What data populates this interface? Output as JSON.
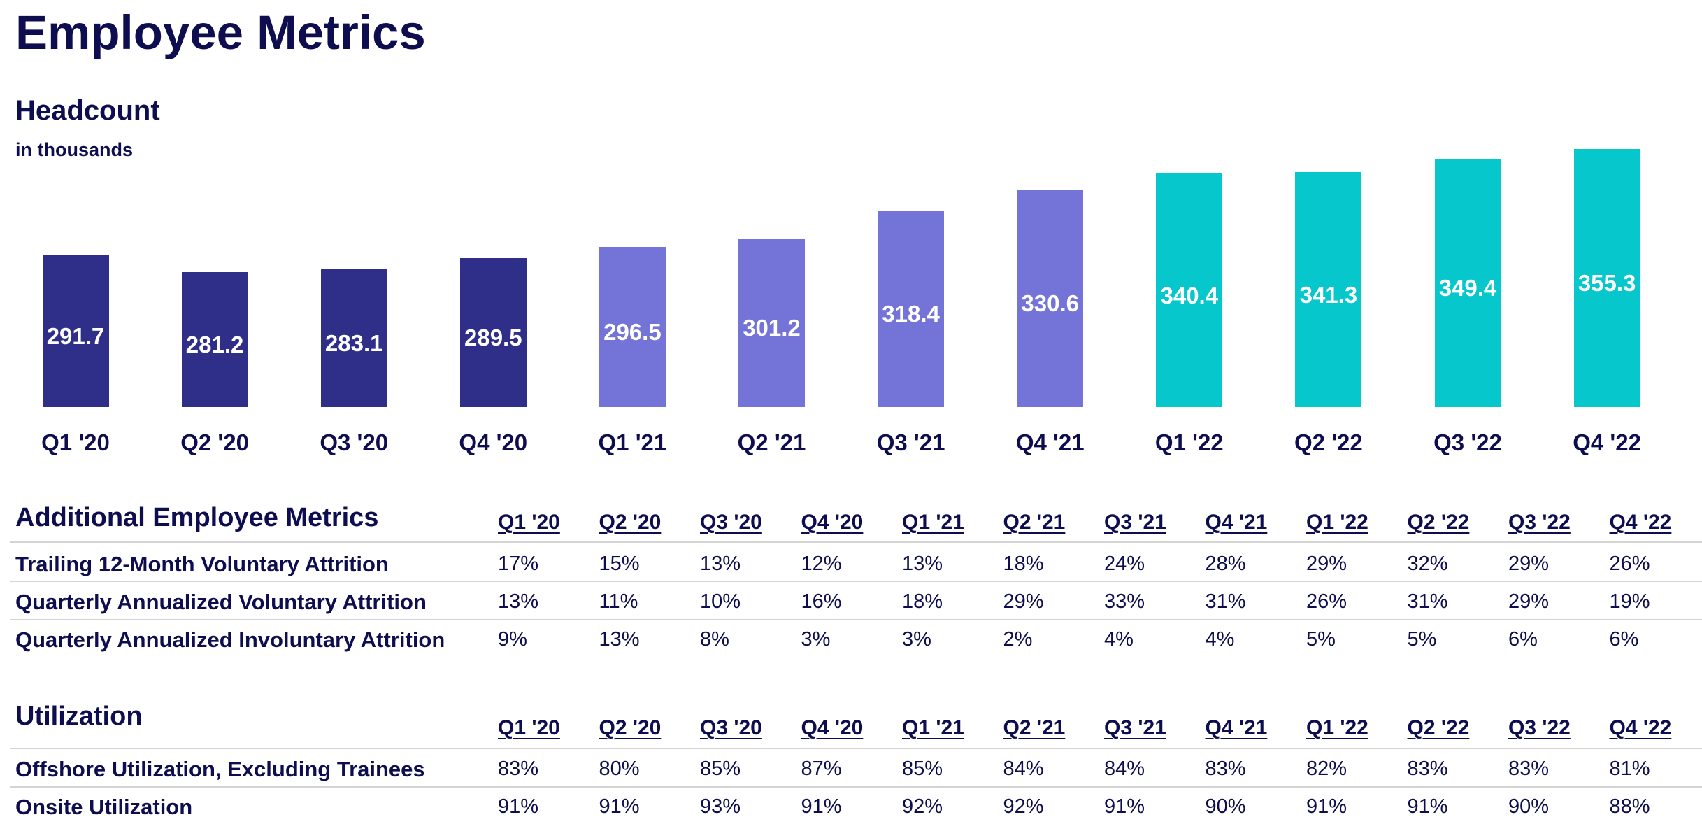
{
  "page_title": "Employee Metrics",
  "chart_data": {
    "type": "bar",
    "title": "Headcount",
    "subtitle": "in thousands",
    "categories": [
      "Q1 '20",
      "Q2 '20",
      "Q3 '20",
      "Q4 '20",
      "Q1 '21",
      "Q2 '21",
      "Q3 '21",
      "Q4 '21",
      "Q1 '22",
      "Q2 '22",
      "Q3 '22",
      "Q4 '22"
    ],
    "values": [
      291.7,
      281.2,
      283.1,
      289.5,
      296.5,
      301.2,
      318.4,
      330.6,
      340.4,
      341.3,
      349.4,
      355.3
    ],
    "bar_colors": [
      "#2f2f8a",
      "#2f2f8a",
      "#2f2f8a",
      "#2f2f8a",
      "#7474d8",
      "#7474d8",
      "#7474d8",
      "#7474d8",
      "#06c7cc",
      "#06c7cc",
      "#06c7cc",
      "#06c7cc"
    ],
    "ylim": [
      200,
      370
    ],
    "grid": false
  },
  "additional_metrics": {
    "heading": "Additional Employee Metrics",
    "columns": [
      "Q1 '20",
      "Q2 '20",
      "Q3 '20",
      "Q4 '20",
      "Q1 '21",
      "Q2 '21",
      "Q3 '21",
      "Q4 '21",
      "Q1 '22",
      "Q2 '22",
      "Q3 '22",
      "Q4 '22"
    ],
    "rows": [
      {
        "label": "Trailing 12-Month Voluntary Attrition",
        "values": [
          "17%",
          "15%",
          "13%",
          "12%",
          "13%",
          "18%",
          "24%",
          "28%",
          "29%",
          "32%",
          "29%",
          "26%"
        ]
      },
      {
        "label": "Quarterly Annualized Voluntary Attrition",
        "values": [
          "13%",
          "11%",
          "10%",
          "16%",
          "18%",
          "29%",
          "33%",
          "31%",
          "26%",
          "31%",
          "29%",
          "19%"
        ]
      },
      {
        "label": "Quarterly Annualized Involuntary Attrition",
        "values": [
          "9%",
          "13%",
          "8%",
          "3%",
          "3%",
          "2%",
          "4%",
          "4%",
          "5%",
          "5%",
          "6%",
          "6%"
        ]
      }
    ]
  },
  "utilization": {
    "heading": "Utilization",
    "columns": [
      "Q1 '20",
      "Q2 '20",
      "Q3 '20",
      "Q4 '20",
      "Q1 '21",
      "Q2 '21",
      "Q3 '21",
      "Q4 '21",
      "Q1 '22",
      "Q2 '22",
      "Q3 '22",
      "Q4 '22"
    ],
    "rows": [
      {
        "label": "Offshore Utilization, Excluding Trainees",
        "values": [
          "83%",
          "80%",
          "85%",
          "87%",
          "85%",
          "84%",
          "84%",
          "83%",
          "82%",
          "83%",
          "83%",
          "81%"
        ]
      },
      {
        "label": "Onsite Utilization",
        "values": [
          "91%",
          "91%",
          "93%",
          "91%",
          "92%",
          "92%",
          "91%",
          "90%",
          "91%",
          "91%",
          "90%",
          "88%"
        ]
      }
    ]
  }
}
